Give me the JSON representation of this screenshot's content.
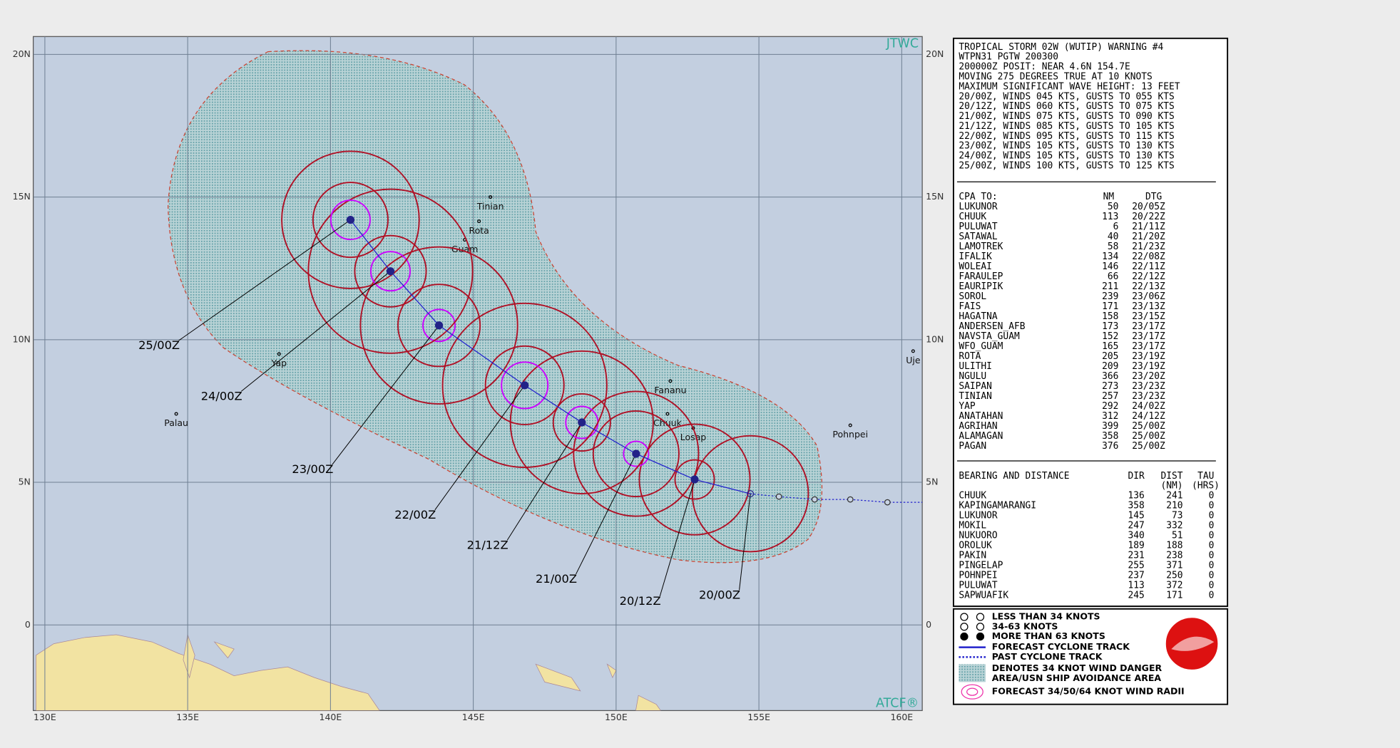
{
  "header": {
    "lines": [
      "TROPICAL STORM 02W (WUTIP) WARNING #4",
      "WTPN31 PGTW 200300",
      "200000Z POSIT: NEAR 4.6N 154.7E",
      "MOVING 275 DEGREES TRUE AT 10 KNOTS",
      "MAXIMUM SIGNIFICANT WAVE HEIGHT: 13 FEET",
      "20/00Z, WINDS 045 KTS, GUSTS TO 055 KTS",
      "20/12Z, WINDS 060 KTS, GUSTS TO 075 KTS",
      "21/00Z, WINDS 075 KTS, GUSTS TO 090 KTS",
      "21/12Z, WINDS 085 KTS, GUSTS TO 105 KTS",
      "22/00Z, WINDS 095 KTS, GUSTS TO 115 KTS",
      "23/00Z, WINDS 105 KTS, GUSTS TO 130 KTS",
      "24/00Z, WINDS 105 KTS, GUSTS TO 130 KTS",
      "25/00Z, WINDS 100 KTS, GUSTS TO 125 KTS"
    ]
  },
  "cpa": {
    "columns": [
      "CPA TO:",
      "NM",
      "DTG"
    ],
    "rows": [
      [
        "LUKUNOR",
        50,
        "20/05Z"
      ],
      [
        "CHUUK",
        113,
        "20/22Z"
      ],
      [
        "PULUWAT",
        6,
        "21/11Z"
      ],
      [
        "SATAWAL",
        40,
        "21/20Z"
      ],
      [
        "LAMOTREK",
        58,
        "21/23Z"
      ],
      [
        "IFALIK",
        134,
        "22/08Z"
      ],
      [
        "WOLEAI",
        146,
        "22/11Z"
      ],
      [
        "FARAULEP",
        66,
        "22/12Z"
      ],
      [
        "EAURIPIK",
        211,
        "22/13Z"
      ],
      [
        "SOROL",
        239,
        "23/06Z"
      ],
      [
        "FAIS",
        171,
        "23/13Z"
      ],
      [
        "HAGATNA",
        158,
        "23/15Z"
      ],
      [
        "ANDERSEN_AFB",
        173,
        "23/17Z"
      ],
      [
        "NAVSTA_GUAM",
        152,
        "23/17Z"
      ],
      [
        "WFO_GUAM",
        165,
        "23/17Z"
      ],
      [
        "ROTA",
        205,
        "23/19Z"
      ],
      [
        "ULITHI",
        209,
        "23/19Z"
      ],
      [
        "NGULU",
        366,
        "23/20Z"
      ],
      [
        "SAIPAN",
        273,
        "23/23Z"
      ],
      [
        "TINIAN",
        257,
        "23/23Z"
      ],
      [
        "YAP",
        292,
        "24/02Z"
      ],
      [
        "ANATAHAN",
        312,
        "24/12Z"
      ],
      [
        "AGRIHAN",
        399,
        "25/00Z"
      ],
      [
        "ALAMAGAN",
        358,
        "25/00Z"
      ],
      [
        "PAGAN",
        376,
        "25/00Z"
      ]
    ]
  },
  "bearing": {
    "columns": [
      "BEARING AND DISTANCE",
      "DIR",
      "DIST",
      "TAU"
    ],
    "units": [
      "(NM)",
      "(HRS)"
    ],
    "rows": [
      [
        "CHUUK",
        136,
        241,
        0
      ],
      [
        "KAPINGAMARANGI",
        358,
        210,
        0
      ],
      [
        "LUKUNOR",
        145,
        73,
        0
      ],
      [
        "MOKIL",
        247,
        332,
        0
      ],
      [
        "NUKUORO",
        340,
        51,
        0
      ],
      [
        "OROLUK",
        189,
        188,
        0
      ],
      [
        "PAKIN",
        231,
        238,
        0
      ],
      [
        "PINGELAP",
        255,
        371,
        0
      ],
      [
        "POHNPEI",
        237,
        250,
        0
      ],
      [
        "PULUWAT",
        113,
        372,
        0
      ],
      [
        "SAPWUAFIK",
        245,
        171,
        0
      ]
    ]
  },
  "legend": [
    "LESS THAN 34 KNOTS",
    "34-63 KNOTS",
    "MORE THAN 63 KNOTS",
    "FORECAST CYCLONE TRACK",
    "PAST CYCLONE TRACK",
    "DENOTES 34 KNOT WIND DANGER",
    "AREA/USN SHIP AVOIDANCE AREA",
    "FORECAST 34/50/64 KNOT WIND RADII"
  ],
  "map": {
    "source": "JTWC",
    "credit": "ATCF®",
    "lat_ticks": [
      {
        "value": 20,
        "label": "20N"
      },
      {
        "value": 15,
        "label": "15N"
      },
      {
        "value": 10,
        "label": "10N"
      },
      {
        "value": 5,
        "label": "5N"
      },
      0
    ],
    "lon_ticks": [
      {
        "value": 130,
        "label": "130E"
      },
      {
        "value": 135,
        "label": "135E"
      },
      {
        "value": 140,
        "label": "140E"
      },
      {
        "value": 145,
        "label": "145E"
      },
      {
        "value": 150,
        "label": "150E"
      },
      {
        "value": 155,
        "label": "155E"
      },
      {
        "value": 160,
        "label": "160E"
      }
    ],
    "places": [
      {
        "name": "Tinian",
        "lat": 15.0,
        "lon": 145.6
      },
      {
        "name": "Rota",
        "lat": 14.15,
        "lon": 145.2
      },
      {
        "name": "Guam",
        "lat": 13.5,
        "lon": 144.7
      },
      {
        "name": "Yap",
        "lat": 9.5,
        "lon": 138.2
      },
      {
        "name": "Palau",
        "lat": 7.4,
        "lon": 134.6
      },
      {
        "name": "Fananu",
        "lat": 8.55,
        "lon": 151.9
      },
      {
        "name": "Chuuk",
        "lat": 7.4,
        "lon": 151.8
      },
      {
        "name": "Losap",
        "lat": 6.9,
        "lon": 152.7
      },
      {
        "name": "Pohnpei",
        "lat": 7.0,
        "lon": 158.2
      },
      {
        "name": "Uje",
        "lat": 9.6,
        "lon": 160.4
      }
    ],
    "forecast": [
      {
        "label": "20/00Z",
        "lat": 4.6,
        "lon": 154.7
      },
      {
        "label": "20/12Z",
        "lat": 5.1,
        "lon": 152.75
      },
      {
        "label": "21/00Z",
        "lat": 6.0,
        "lon": 150.7
      },
      {
        "label": "21/12Z",
        "lat": 7.1,
        "lon": 148.8
      },
      {
        "label": "22/00Z",
        "lat": 8.4,
        "lon": 146.8
      },
      {
        "label": "23/00Z",
        "lat": 10.5,
        "lon": 143.8
      },
      {
        "label": "24/00Z",
        "lat": 12.4,
        "lon": 142.1
      },
      {
        "label": "25/00Z",
        "lat": 14.2,
        "lon": 140.7
      }
    ],
    "past": {
      "lat": [
        4.6,
        4.5,
        4.4,
        4.4,
        4.3
      ],
      "lon": [
        154.7,
        155.7,
        156.95,
        158.2,
        159.5
      ]
    }
  }
}
